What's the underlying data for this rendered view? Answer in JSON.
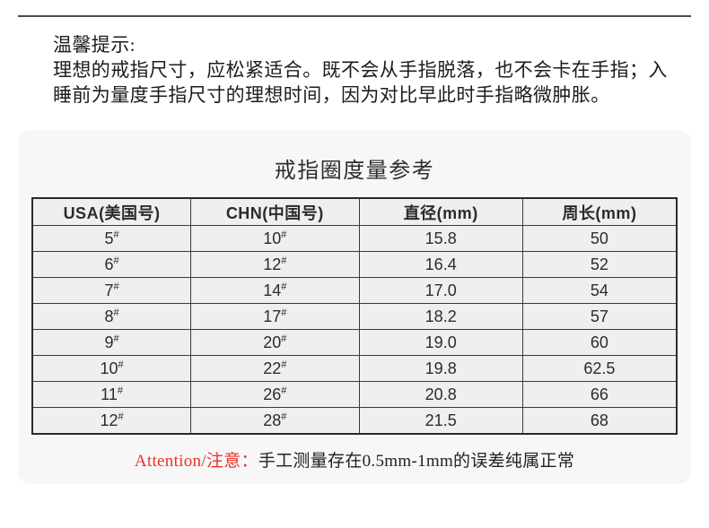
{
  "tips": {
    "heading": "温馨提示:",
    "line1": "理想的戒指尺寸，应松紧适合。既不会从手指脱落，也不会卡在手指；入",
    "line2": "睡前为量度手指尺寸的理想时间，因为对比早此时手指略微肿胀。"
  },
  "card": {
    "title": "戒指圈度量参考"
  },
  "table": {
    "sup": "#",
    "headers": {
      "usa": "USA(美国号)",
      "chn": "CHN(中国号)",
      "diameter": "直径(mm)",
      "circumference": "周长(mm)"
    },
    "rows": [
      {
        "usa": "5",
        "chn": "10",
        "diameter": "15.8",
        "circumference": "50"
      },
      {
        "usa": "6",
        "chn": "12",
        "diameter": "16.4",
        "circumference": "52"
      },
      {
        "usa": "7",
        "chn": "14",
        "diameter": "17.0",
        "circumference": "54"
      },
      {
        "usa": "8",
        "chn": "17",
        "diameter": "18.2",
        "circumference": "57"
      },
      {
        "usa": "9",
        "chn": "20",
        "diameter": "19.0",
        "circumference": "60"
      },
      {
        "usa": "10",
        "chn": "22",
        "diameter": "19.8",
        "circumference": "62.5"
      },
      {
        "usa": "11",
        "chn": "26",
        "diameter": "20.8",
        "circumference": "66"
      },
      {
        "usa": "12",
        "chn": "28",
        "diameter": "21.5",
        "circumference": "68"
      }
    ]
  },
  "note": {
    "attention_label": "Attention/注意：",
    "text": "手工测量存在0.5mm-1mm的误差纯属正常"
  },
  "colors": {
    "accent_red": "#e8312a",
    "card_background": "#f7f7f8",
    "cell_background": "#efeff0",
    "rule": "#4a4a4a"
  }
}
